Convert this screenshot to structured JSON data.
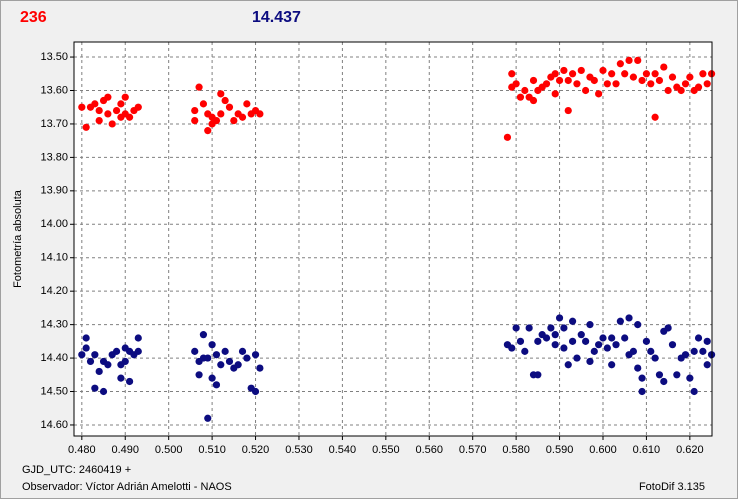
{
  "header": {
    "left_value": "236",
    "right_value": "14.437"
  },
  "footer": {
    "epoch": "GJD_UTC: 2460419 +",
    "observer": "Observador: Víctor Adrián Amelotti - NAOS",
    "software": "FotoDif 3.135"
  },
  "chart_data": {
    "type": "scatter",
    "ylabel": "Fotometría absoluta",
    "xlim": [
      0.4782,
      0.6251
    ],
    "ylim": [
      13.455,
      14.633
    ],
    "invert_y": true,
    "grid": true,
    "xticks": [
      {
        "value": 0.48,
        "label": "0.480"
      },
      {
        "value": 0.49,
        "label": "0.490"
      },
      {
        "value": 0.5,
        "label": "0.500"
      },
      {
        "value": 0.51,
        "label": "0.510"
      },
      {
        "value": 0.52,
        "label": "0.520"
      },
      {
        "value": 0.53,
        "label": "0.530"
      },
      {
        "value": 0.54,
        "label": "0.540"
      },
      {
        "value": 0.55,
        "label": "0.550"
      },
      {
        "value": 0.56,
        "label": "0.560"
      },
      {
        "value": 0.57,
        "label": "0.570"
      },
      {
        "value": 0.58,
        "label": "0.580"
      },
      {
        "value": 0.59,
        "label": "0.590"
      },
      {
        "value": 0.6,
        "label": "0.600"
      },
      {
        "value": 0.61,
        "label": "0.610"
      },
      {
        "value": 0.62,
        "label": "0.620"
      }
    ],
    "yticks": [
      {
        "value": 13.5,
        "label": "13.50"
      },
      {
        "value": 13.6,
        "label": "13.60"
      },
      {
        "value": 13.7,
        "label": "13.70"
      },
      {
        "value": 13.8,
        "label": "13.80"
      },
      {
        "value": 13.9,
        "label": "13.90"
      },
      {
        "value": 14.0,
        "label": "14.00"
      },
      {
        "value": 14.1,
        "label": "14.10"
      },
      {
        "value": 14.2,
        "label": "14.20"
      },
      {
        "value": 14.3,
        "label": "14.30"
      },
      {
        "value": 14.4,
        "label": "14.40"
      },
      {
        "value": 14.5,
        "label": "14.50"
      },
      {
        "value": 14.6,
        "label": "14.60"
      }
    ],
    "series": [
      {
        "color": "#ff0000",
        "x": [
          0.48,
          0.481,
          0.482,
          0.483,
          0.484,
          0.485,
          0.486,
          0.486,
          0.487,
          0.488,
          0.489,
          0.489,
          0.49,
          0.49,
          0.491,
          0.492,
          0.493,
          0.484,
          0.506,
          0.506,
          0.507,
          0.508,
          0.509,
          0.509,
          0.51,
          0.511,
          0.512,
          0.512,
          0.513,
          0.514,
          0.515,
          0.516,
          0.517,
          0.518,
          0.519,
          0.52,
          0.521,
          0.51,
          0.578,
          0.579,
          0.579,
          0.58,
          0.581,
          0.582,
          0.583,
          0.584,
          0.584,
          0.585,
          0.586,
          0.587,
          0.588,
          0.589,
          0.589,
          0.59,
          0.591,
          0.592,
          0.592,
          0.593,
          0.594,
          0.595,
          0.596,
          0.597,
          0.598,
          0.599,
          0.6,
          0.601,
          0.602,
          0.603,
          0.604,
          0.605,
          0.606,
          0.607,
          0.608,
          0.609,
          0.61,
          0.611,
          0.612,
          0.612,
          0.613,
          0.614,
          0.615,
          0.616,
          0.617,
          0.618,
          0.619,
          0.62,
          0.621,
          0.622,
          0.623,
          0.624,
          0.625
        ],
        "values": [
          13.65,
          13.71,
          13.65,
          13.64,
          13.69,
          13.63,
          13.62,
          13.67,
          13.7,
          13.66,
          13.64,
          13.68,
          13.67,
          13.62,
          13.68,
          13.66,
          13.65,
          13.66,
          13.66,
          13.69,
          13.59,
          13.64,
          13.67,
          13.72,
          13.68,
          13.69,
          13.67,
          13.61,
          13.63,
          13.65,
          13.69,
          13.67,
          13.68,
          13.64,
          13.67,
          13.66,
          13.67,
          13.7,
          13.74,
          13.59,
          13.55,
          13.58,
          13.62,
          13.6,
          13.62,
          13.63,
          13.57,
          13.6,
          13.59,
          13.58,
          13.56,
          13.55,
          13.61,
          13.57,
          13.54,
          13.66,
          13.57,
          13.55,
          13.58,
          13.54,
          13.6,
          13.56,
          13.57,
          13.61,
          13.54,
          13.58,
          13.55,
          13.58,
          13.52,
          13.55,
          13.51,
          13.56,
          13.51,
          13.57,
          13.55,
          13.58,
          13.68,
          13.55,
          13.57,
          13.53,
          13.6,
          13.56,
          13.59,
          13.6,
          13.58,
          13.56,
          13.6,
          13.59,
          13.55,
          13.58,
          13.55
        ]
      },
      {
        "color": "#0c0c80",
        "x": [
          0.48,
          0.481,
          0.481,
          0.482,
          0.483,
          0.483,
          0.484,
          0.485,
          0.485,
          0.486,
          0.487,
          0.488,
          0.489,
          0.489,
          0.49,
          0.49,
          0.491,
          0.491,
          0.492,
          0.493,
          0.493,
          0.506,
          0.507,
          0.507,
          0.508,
          0.508,
          0.509,
          0.509,
          0.51,
          0.51,
          0.511,
          0.511,
          0.512,
          0.513,
          0.514,
          0.515,
          0.516,
          0.517,
          0.518,
          0.519,
          0.52,
          0.52,
          0.521,
          0.578,
          0.579,
          0.58,
          0.581,
          0.582,
          0.583,
          0.584,
          0.585,
          0.585,
          0.586,
          0.587,
          0.588,
          0.589,
          0.589,
          0.59,
          0.591,
          0.591,
          0.592,
          0.593,
          0.593,
          0.594,
          0.595,
          0.596,
          0.597,
          0.597,
          0.598,
          0.599,
          0.6,
          0.601,
          0.602,
          0.602,
          0.603,
          0.604,
          0.605,
          0.606,
          0.606,
          0.607,
          0.608,
          0.608,
          0.609,
          0.609,
          0.61,
          0.611,
          0.612,
          0.613,
          0.614,
          0.614,
          0.615,
          0.616,
          0.617,
          0.618,
          0.619,
          0.62,
          0.621,
          0.621,
          0.622,
          0.623,
          0.624,
          0.624,
          0.625
        ],
        "values": [
          14.39,
          14.37,
          14.34,
          14.41,
          14.49,
          14.39,
          14.44,
          14.5,
          14.41,
          14.42,
          14.39,
          14.38,
          14.46,
          14.42,
          14.37,
          14.41,
          14.47,
          14.38,
          14.39,
          14.34,
          14.38,
          14.38,
          14.41,
          14.45,
          14.4,
          14.33,
          14.58,
          14.4,
          14.36,
          14.46,
          14.39,
          14.48,
          14.42,
          14.38,
          14.41,
          14.43,
          14.42,
          14.38,
          14.4,
          14.49,
          14.39,
          14.5,
          14.43,
          14.36,
          14.37,
          14.31,
          14.35,
          14.38,
          14.31,
          14.45,
          14.35,
          14.45,
          14.33,
          14.34,
          14.31,
          14.36,
          14.33,
          14.28,
          14.37,
          14.31,
          14.42,
          14.29,
          14.35,
          14.4,
          14.33,
          14.35,
          14.41,
          14.3,
          14.38,
          14.36,
          14.34,
          14.37,
          14.42,
          14.34,
          14.36,
          14.29,
          14.34,
          14.28,
          14.39,
          14.38,
          14.43,
          14.3,
          14.46,
          14.5,
          14.35,
          14.38,
          14.4,
          14.45,
          14.32,
          14.47,
          14.31,
          14.36,
          14.45,
          14.4,
          14.39,
          14.46,
          14.38,
          14.5,
          14.34,
          14.38,
          14.35,
          14.42,
          14.39
        ]
      }
    ]
  }
}
